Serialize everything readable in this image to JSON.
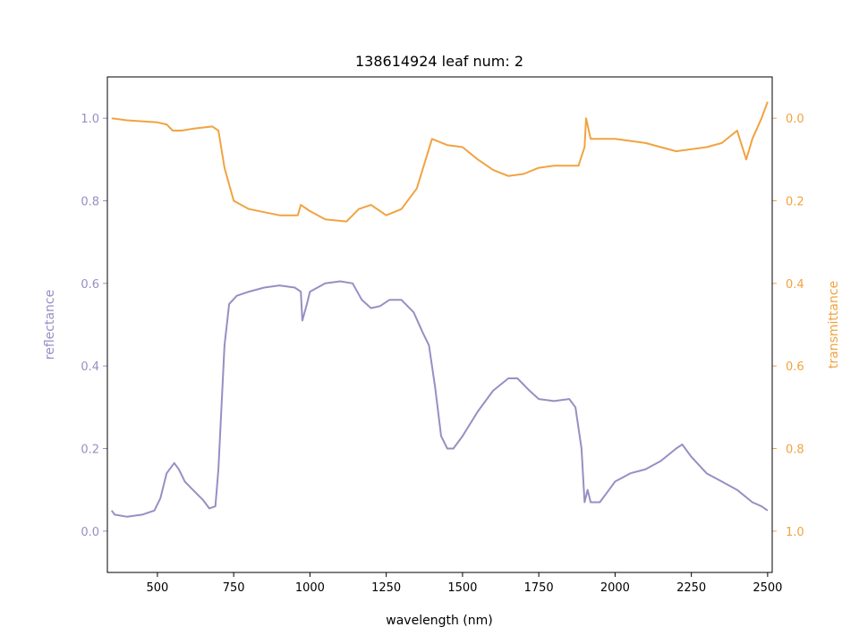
{
  "chart_data": {
    "type": "line",
    "title": "138614924 leaf num: 2",
    "xlabel": "wavelength (nm)",
    "ylabel": "reflectance",
    "y2label": "transmittance",
    "xlim": [
      336,
      2515
    ],
    "xticks": [
      500,
      750,
      1000,
      1250,
      1500,
      1750,
      2000,
      2250,
      2500
    ],
    "ylim": [
      -0.1,
      1.1
    ],
    "yticks": [
      {
        "value": 0,
        "label": "0.0"
      },
      {
        "value": 0.2,
        "label": "0.2"
      },
      {
        "value": 0.4,
        "label": "0.4"
      },
      {
        "value": 0.6,
        "label": "0.6"
      },
      {
        "value": 0.8,
        "label": "0.8"
      },
      {
        "value": 1,
        "label": "1.0"
      }
    ],
    "y2lim": [
      1.1,
      -0.1
    ],
    "y2ticks": [
      {
        "value": 0,
        "label": "0.0"
      },
      {
        "value": 0.2,
        "label": "0.2"
      },
      {
        "value": 0.4,
        "label": "0.4"
      },
      {
        "value": 0.6,
        "label": "0.6"
      },
      {
        "value": 0.8,
        "label": "0.8"
      },
      {
        "value": 1,
        "label": "1.0"
      }
    ],
    "series": [
      {
        "name": "reflectance",
        "color": "#998ec3",
        "x": [
          350,
          360,
          400,
          450,
          490,
          510,
          530,
          555,
          570,
          590,
          610,
          630,
          650,
          670,
          690,
          700,
          710,
          720,
          735,
          760,
          800,
          850,
          900,
          950,
          970,
          975,
          990,
          1000,
          1050,
          1100,
          1140,
          1170,
          1200,
          1230,
          1260,
          1300,
          1340,
          1370,
          1390,
          1410,
          1430,
          1450,
          1470,
          1500,
          1550,
          1600,
          1650,
          1680,
          1720,
          1750,
          1800,
          1850,
          1870,
          1890,
          1900,
          1910,
          1920,
          1950,
          1980,
          2000,
          2050,
          2100,
          2150,
          2200,
          2220,
          2250,
          2300,
          2350,
          2400,
          2450,
          2480,
          2500
        ],
        "values": [
          0.05,
          0.04,
          0.035,
          0.04,
          0.05,
          0.08,
          0.14,
          0.165,
          0.15,
          0.12,
          0.105,
          0.09,
          0.075,
          0.055,
          0.06,
          0.15,
          0.3,
          0.45,
          0.55,
          0.57,
          0.58,
          0.59,
          0.595,
          0.59,
          0.58,
          0.51,
          0.55,
          0.58,
          0.6,
          0.605,
          0.6,
          0.56,
          0.54,
          0.545,
          0.56,
          0.56,
          0.53,
          0.48,
          0.45,
          0.35,
          0.23,
          0.2,
          0.2,
          0.23,
          0.29,
          0.34,
          0.37,
          0.37,
          0.34,
          0.32,
          0.315,
          0.32,
          0.3,
          0.2,
          0.07,
          0.1,
          0.07,
          0.07,
          0.1,
          0.12,
          0.14,
          0.15,
          0.17,
          0.2,
          0.21,
          0.18,
          0.14,
          0.12,
          0.1,
          0.07,
          0.06,
          0.05
        ]
      },
      {
        "name": "transmittance",
        "color": "#f1a340",
        "axis": "y2",
        "x": [
          350,
          400,
          500,
          530,
          550,
          580,
          620,
          680,
          700,
          720,
          750,
          800,
          900,
          960,
          970,
          1000,
          1050,
          1120,
          1160,
          1200,
          1250,
          1300,
          1350,
          1400,
          1450,
          1500,
          1550,
          1600,
          1650,
          1700,
          1750,
          1800,
          1880,
          1900,
          1905,
          1920,
          2000,
          2100,
          2200,
          2300,
          2350,
          2400,
          2430,
          2450,
          2480,
          2500
        ],
        "values": [
          0.0,
          0.005,
          0.01,
          0.015,
          0.03,
          0.03,
          0.025,
          0.02,
          0.03,
          0.12,
          0.2,
          0.22,
          0.235,
          0.235,
          0.21,
          0.225,
          0.245,
          0.25,
          0.22,
          0.21,
          0.235,
          0.22,
          0.17,
          0.05,
          0.065,
          0.07,
          0.1,
          0.125,
          0.14,
          0.135,
          0.12,
          0.115,
          0.115,
          0.07,
          0.0,
          0.05,
          0.05,
          0.06,
          0.08,
          0.07,
          0.06,
          0.03,
          0.1,
          0.05,
          0.0,
          -0.04
        ]
      }
    ]
  }
}
